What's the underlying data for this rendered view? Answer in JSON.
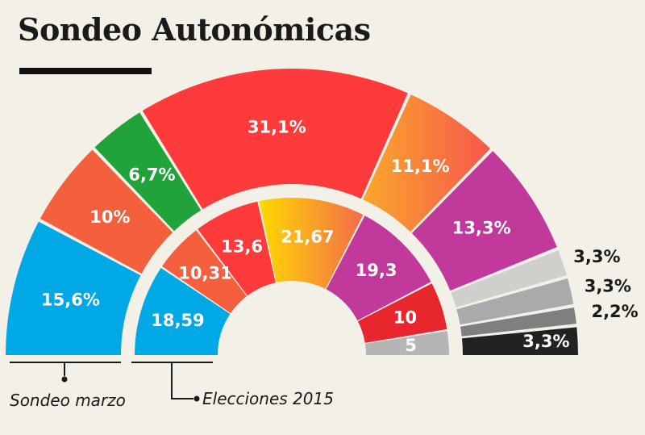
{
  "title": "Sondeo Autonómicas",
  "legend": {
    "outer": "Sondeo marzo",
    "inner": "Elecciones 2015"
  },
  "chart_data": {
    "type": "pie",
    "subtype": "half-donut-nested",
    "series": [
      {
        "name": "Sondeo marzo",
        "ring": "outer",
        "slices": [
          {
            "label": "15,6%",
            "value": 15.6,
            "color": "#00a9e6"
          },
          {
            "label": "10%",
            "value": 10,
            "color": "#f4603e"
          },
          {
            "label": "6,7%",
            "value": 6.7,
            "color": "#1fa33a"
          },
          {
            "label": "31,1%",
            "value": 31.1,
            "color": "#ff3a3a"
          },
          {
            "label": "11,1%",
            "value": 11.1,
            "color": "#fba72d",
            "color2": "#f6574a"
          },
          {
            "label": "13,3%",
            "value": 13.3,
            "color": "#c0399b"
          },
          {
            "label": "3,3%",
            "value": 3.3,
            "color": "#cfcfcb",
            "outside": true
          },
          {
            "label": "3,3%",
            "value": 3.3,
            "color": "#aaaaaa",
            "outside": true
          },
          {
            "label": "2,2%",
            "value": 2.2,
            "color": "#7f7f7f",
            "outside": true
          },
          {
            "label": "3,3%",
            "value": 3.3,
            "color": "#222222",
            "outside_inline": true
          }
        ]
      },
      {
        "name": "Elecciones 2015",
        "ring": "inner",
        "slices": [
          {
            "label": "18,59",
            "value": 18.59,
            "color": "#00a9e6"
          },
          {
            "label": "10,31",
            "value": 10.31,
            "color": "#f4603e"
          },
          {
            "label": "13,6",
            "value": 13.6,
            "color": "#ff3a3a"
          },
          {
            "label": "21,67",
            "value": 21.67,
            "color": "#ffd900",
            "color2": "#f46c4c"
          },
          {
            "label": "19,3",
            "value": 19.3,
            "color": "#c0399b"
          },
          {
            "label": "10",
            "value": 10,
            "color": "#e8262e"
          },
          {
            "label": "5",
            "value": 5,
            "color": "#b5b5b5"
          }
        ]
      }
    ]
  }
}
